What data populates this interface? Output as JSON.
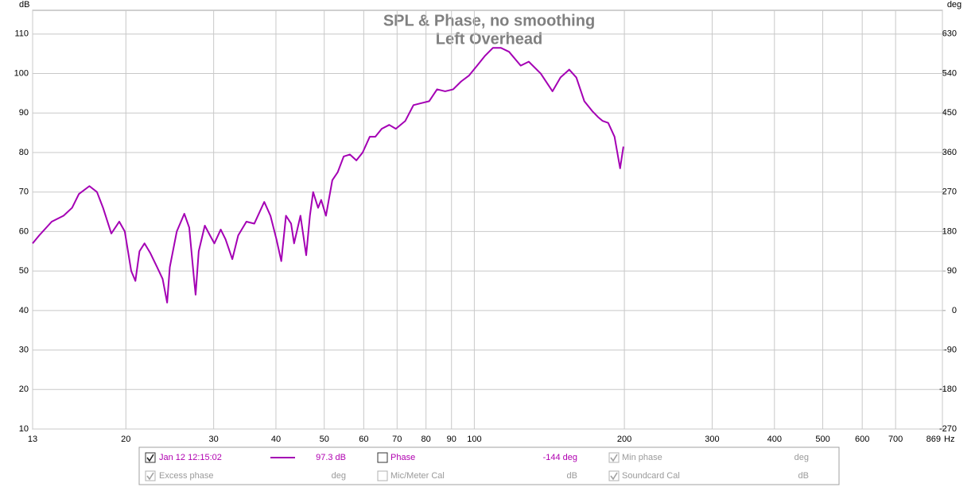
{
  "chart_data": {
    "type": "line",
    "title": "SPL & Phase, no smoothing",
    "subtitle": "Left Overhead",
    "y_label": "dB",
    "y2_label": "deg",
    "x_unit": "Hz",
    "log_x": true,
    "grid": true,
    "xlim": [
      13,
      869
    ],
    "xticks": [
      13,
      20,
      30,
      40,
      50,
      60,
      70,
      80,
      90,
      100,
      200,
      300,
      400,
      500,
      600,
      700,
      869
    ],
    "ylim": [
      10,
      116
    ],
    "yticks": [
      10,
      20,
      30,
      40,
      50,
      60,
      70,
      80,
      90,
      100,
      110
    ],
    "y2lim": [
      -270,
      684
    ],
    "y2ticks": [
      -270,
      -180,
      -90,
      0,
      90,
      180,
      270,
      360,
      450,
      540,
      630
    ],
    "x": [
      13,
      13.4,
      14.2,
      15.0,
      15.6,
      16.1,
      16.9,
      17.5,
      18.0,
      18.7,
      19.4,
      19.9,
      20.5,
      20.9,
      21.3,
      21.8,
      22.4,
      23.1,
      23.7,
      24.2,
      24.5,
      25.3,
      26.2,
      26.8,
      27.4,
      27.6,
      28.0,
      28.8,
      29.5,
      30.1,
      31.0,
      31.7,
      32.7,
      33.6,
      34.9,
      36.2,
      37.9,
      39.0,
      40.1,
      41.0,
      41.9,
      42.9,
      43.5,
      44.8,
      46.0,
      46.8,
      47.5,
      48.6,
      49.3,
      50.4,
      51.9,
      53.2,
      54.7,
      56.3,
      58.0,
      59.7,
      61.7,
      63.3,
      65.2,
      67.5,
      69.6,
      72.7,
      75.5,
      78.3,
      81.2,
      84.2,
      87.4,
      90.7,
      94.1,
      97.6,
      101.3,
      105.1,
      109.0,
      113.1,
      117.4,
      123.9,
      128.6,
      135.9,
      143.5,
      148.9,
      155.0,
      160.2,
      166.2,
      172.4,
      177.0,
      180.9,
      185.6,
      191.1,
      196.1,
      199.1
    ],
    "series": [
      {
        "name": "Jan 12 12:15:02",
        "color": "#a400b4",
        "readout": "97.3 dB",
        "values": [
          57,
          59,
          62.5,
          64,
          66,
          69.5,
          71.5,
          70,
          66,
          59.5,
          62.5,
          60,
          50,
          47.5,
          55,
          57,
          54.5,
          51,
          48,
          42,
          51,
          60,
          64.5,
          61,
          48,
          44,
          55,
          61.5,
          59,
          57,
          60.5,
          58,
          53,
          59,
          62.5,
          62,
          67.5,
          64,
          58,
          52.5,
          64,
          62,
          57,
          64,
          54,
          64,
          70,
          66,
          68,
          64,
          73,
          75,
          79,
          79.5,
          78,
          80,
          84,
          84,
          86,
          87,
          86,
          88,
          92,
          92.5,
          93,
          96,
          95.5,
          96,
          98,
          99.5,
          102,
          104.5,
          106.5,
          106.5,
          105.5,
          102,
          103,
          100,
          95.5,
          99,
          101,
          99,
          93,
          90.5,
          89,
          88,
          87.5,
          84,
          76,
          81.5
        ]
      }
    ]
  },
  "controls": [
    {
      "label": "Phase",
      "value": "-144 deg"
    },
    {
      "label": "Min phase",
      "value": "deg"
    },
    {
      "label": "Excess phase",
      "value": "deg"
    },
    {
      "label": "Mic/Meter Cal",
      "value": "dB"
    },
    {
      "label": "Soundcard Cal",
      "value": "dB"
    }
  ]
}
